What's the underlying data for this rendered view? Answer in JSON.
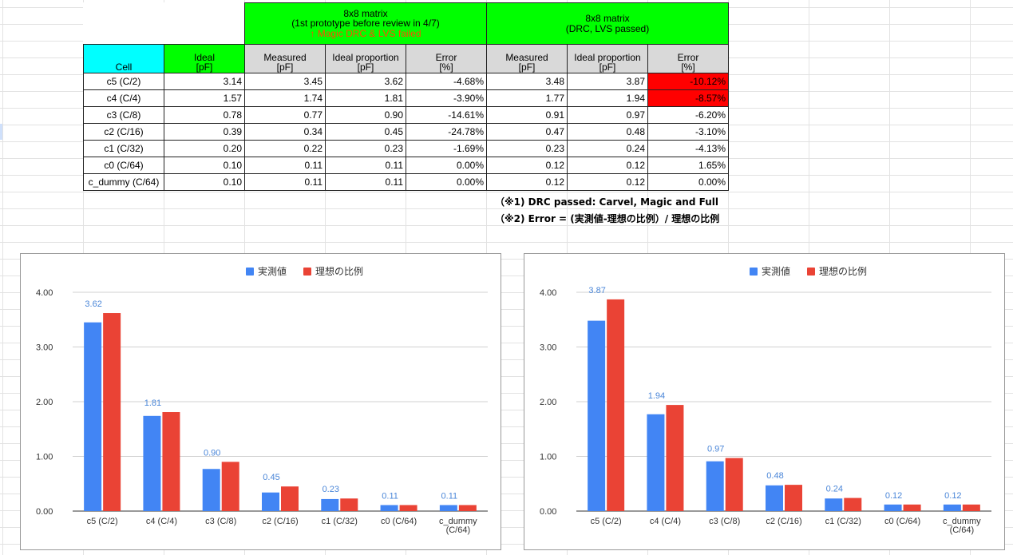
{
  "table": {
    "group1": {
      "line1": "8x8 matrix",
      "line2": "(1st prototype before review in 4/7)",
      "line3": "↑ Magic DRC & LVS failed"
    },
    "group2": {
      "line1": "8x8 matrix",
      "line2": "(DRC, LVS passed)"
    },
    "headers": {
      "cell": "Cell",
      "ideal_1": "Ideal",
      "ideal_2": "[pF]",
      "measured_1": "Measured",
      "measured_2": "[pF]",
      "proportion_1": "Ideal proportion",
      "proportion_2": "[pF]",
      "error_1": "Error",
      "error_2": "[%]"
    },
    "rows": [
      {
        "cell": "c5 (C/2)",
        "ideal": "3.14",
        "m1": "3.45",
        "p1": "3.62",
        "e1": "-4.68%",
        "m2": "3.48",
        "p2": "3.87",
        "e2": "-10.12%"
      },
      {
        "cell": "c4 (C/4)",
        "ideal": "1.57",
        "m1": "1.74",
        "p1": "1.81",
        "e1": "-3.90%",
        "m2": "1.77",
        "p2": "1.94",
        "e2": "-8.57%"
      },
      {
        "cell": "c3 (C/8)",
        "ideal": "0.78",
        "m1": "0.77",
        "p1": "0.90",
        "e1": "-14.61%",
        "m2": "0.91",
        "p2": "0.97",
        "e2": "-6.20%"
      },
      {
        "cell": "c2 (C/16)",
        "ideal": "0.39",
        "m1": "0.34",
        "p1": "0.45",
        "e1": "-24.78%",
        "m2": "0.47",
        "p2": "0.48",
        "e2": "-3.10%"
      },
      {
        "cell": "c1 (C/32)",
        "ideal": "0.20",
        "m1": "0.22",
        "p1": "0.23",
        "e1": "-1.69%",
        "m2": "0.23",
        "p2": "0.24",
        "e2": "-4.13%"
      },
      {
        "cell": "c0 (C/64)",
        "ideal": "0.10",
        "m1": "0.11",
        "p1": "0.11",
        "e1": "0.00%",
        "m2": "0.12",
        "p2": "0.12",
        "e2": "1.65%"
      },
      {
        "cell": "c_dummy (C/64)",
        "ideal": "0.10",
        "m1": "0.11",
        "p1": "0.11",
        "e1": "0.00%",
        "m2": "0.12",
        "p2": "0.12",
        "e2": "0.00%"
      }
    ],
    "highlight_color": "#ff0000"
  },
  "notes": {
    "note1": "（※1) DRC passed: Carvel, Magic and Full",
    "note2": "（※2) Error = (実測値-理想の比例）/ 理想の比例"
  },
  "colors": {
    "measured": "#4285f4",
    "ideal": "#ea4335",
    "header_green": "#00ff00",
    "header_cyan": "#00ffff",
    "header_grey": "#d9d9d9"
  },
  "chart_data": [
    {
      "type": "bar",
      "categories": [
        "c5 (C/2)",
        "c4 (C/4)",
        "c3 (C/8)",
        "c2 (C/16)",
        "c1 (C/32)",
        "c0 (C/64)",
        "c_dummy (C/64)"
      ],
      "series": [
        {
          "name": "実測値",
          "values": [
            3.45,
            1.74,
            0.77,
            0.34,
            0.22,
            0.11,
            0.11
          ]
        },
        {
          "name": "理想の比例",
          "values": [
            3.62,
            1.81,
            0.9,
            0.45,
            0.23,
            0.11,
            0.11
          ]
        }
      ],
      "data_labels": [
        "3.62",
        "1.81",
        "0.90",
        "0.45",
        "0.23",
        "0.11",
        "0.11"
      ],
      "yticks": [
        "0.00",
        "1.00",
        "2.00",
        "3.00",
        "4.00"
      ],
      "ylim": [
        0,
        4
      ],
      "legend": "top",
      "grid": true
    },
    {
      "type": "bar",
      "categories": [
        "c5 (C/2)",
        "c4 (C/4)",
        "c3 (C/8)",
        "c2 (C/16)",
        "c1 (C/32)",
        "c0 (C/64)",
        "c_dummy (C/64)"
      ],
      "series": [
        {
          "name": "実測値",
          "values": [
            3.48,
            1.77,
            0.91,
            0.47,
            0.23,
            0.12,
            0.12
          ]
        },
        {
          "name": "理想の比例",
          "values": [
            3.87,
            1.94,
            0.97,
            0.48,
            0.24,
            0.12,
            0.12
          ]
        }
      ],
      "data_labels": [
        "3.87",
        "1.94",
        "0.97",
        "0.48",
        "0.24",
        "0.12",
        "0.12"
      ],
      "yticks": [
        "0.00",
        "1.00",
        "2.00",
        "3.00",
        "4.00"
      ],
      "ylim": [
        0,
        4
      ],
      "legend": "top",
      "grid": true
    }
  ]
}
